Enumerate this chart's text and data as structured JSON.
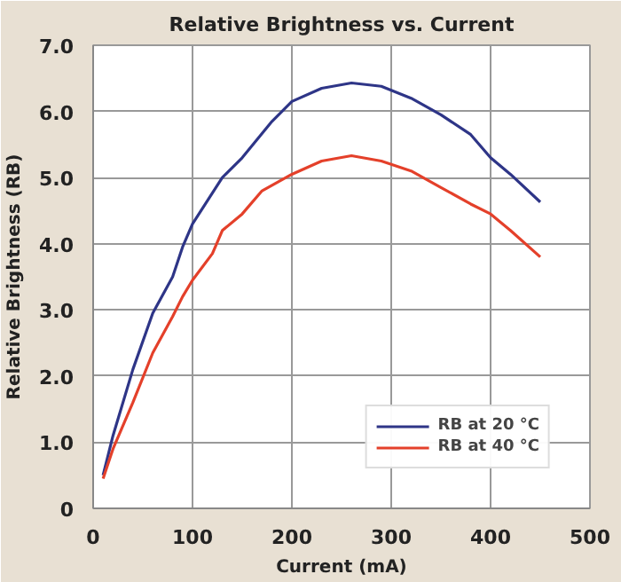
{
  "chart_data": {
    "type": "line",
    "title": "Relative Brightness vs. Current",
    "xlabel": "Current (mA)",
    "ylabel": "Relative Brightness (RB)",
    "xlim": [
      0,
      500
    ],
    "xticks": [
      0,
      100,
      200,
      300,
      400,
      500
    ],
    "ylim": [
      0,
      7
    ],
    "yticks": [
      0,
      {
        "value": 1,
        "label": "1.0"
      },
      {
        "value": 2,
        "label": "2.0"
      },
      {
        "value": 3,
        "label": "3.0"
      },
      {
        "value": 4,
        "label": "4.0"
      },
      {
        "value": 5,
        "label": "5.0"
      },
      {
        "value": 6,
        "label": "6.0"
      },
      {
        "value": 7,
        "label": "7.0"
      }
    ],
    "grid": true,
    "legend": "bottom right",
    "marker": "none",
    "line_style": "solid",
    "series": [
      {
        "name": "RB at 20 °C",
        "color": "#2e3587",
        "x": [
          10,
          20,
          40,
          60,
          80,
          90,
          100,
          130,
          150,
          180,
          200,
          230,
          260,
          290,
          320,
          350,
          380,
          400,
          420,
          450
        ],
        "values": [
          0.5,
          1.1,
          2.1,
          2.95,
          3.5,
          3.95,
          4.3,
          5.0,
          5.3,
          5.85,
          6.15,
          6.35,
          6.43,
          6.38,
          6.2,
          5.95,
          5.65,
          5.3,
          5.05,
          4.63
        ]
      },
      {
        "name": "RB at 40 °C",
        "color": "#e4402a",
        "x": [
          10,
          20,
          40,
          60,
          80,
          90,
          100,
          120,
          130,
          150,
          170,
          200,
          230,
          260,
          290,
          320,
          350,
          380,
          400,
          420,
          450
        ],
        "values": [
          0.45,
          0.9,
          1.6,
          2.35,
          2.9,
          3.2,
          3.45,
          3.85,
          4.2,
          4.45,
          4.8,
          5.05,
          5.25,
          5.33,
          5.25,
          5.1,
          4.85,
          4.6,
          4.45,
          4.2,
          3.8
        ]
      }
    ]
  }
}
